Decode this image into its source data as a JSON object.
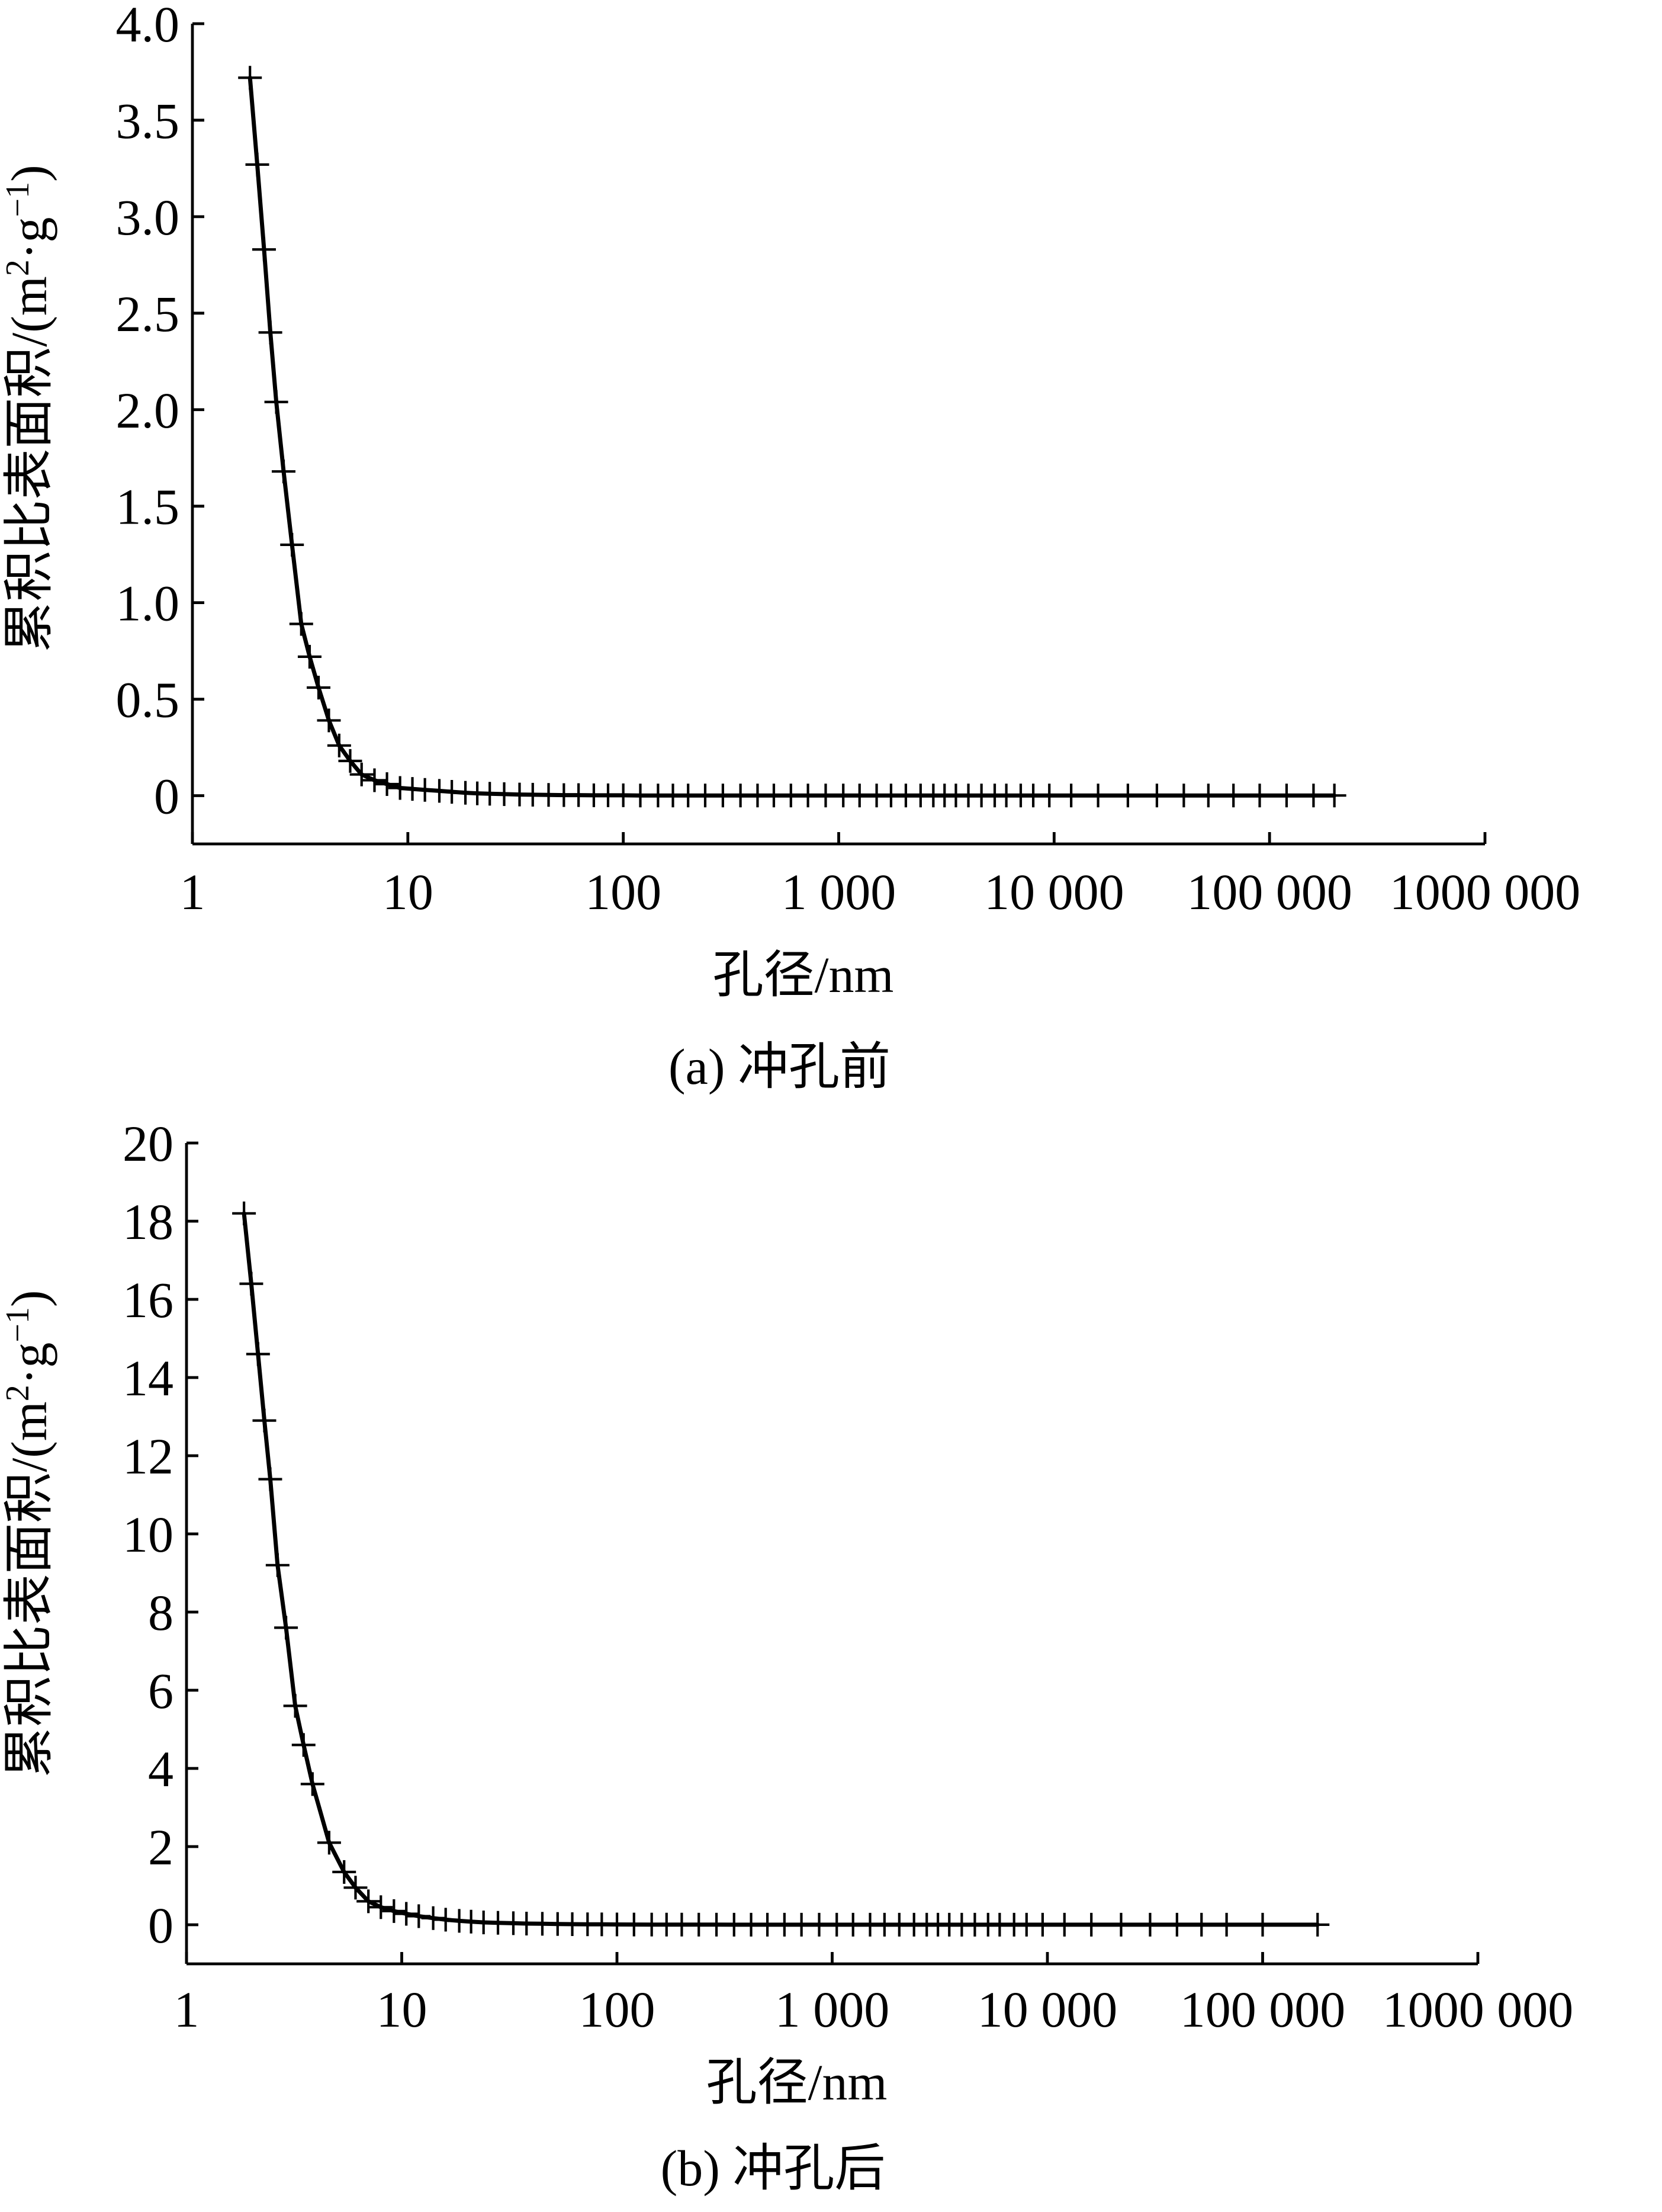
{
  "chart_data": [
    {
      "type": "line",
      "caption": "(a) 冲孔前",
      "xlabel": "孔径/nm",
      "ylabel": "累积比表面积/(m²·g⁻¹)",
      "ylabel_parts": {
        "main": "累积比表面积/(m",
        "sup1": "2",
        "mid": "·g",
        "sup2": "−1",
        "end": ")"
      },
      "x_scale": "log",
      "xlim": [
        1,
        1000000
      ],
      "ylim": [
        -0.25,
        4.0
      ],
      "x_ticks": [
        1,
        10,
        100,
        1000,
        10000,
        100000,
        1000000
      ],
      "x_tick_labels": [
        "1",
        "10",
        "100",
        "1 000",
        "10 000",
        "100 000",
        "1000 000"
      ],
      "y_ticks": [
        0,
        0.5,
        1.0,
        1.5,
        2.0,
        2.5,
        3.0,
        3.5,
        4.0
      ],
      "y_tick_labels": [
        "0",
        "0.5",
        "1.0",
        "1.5",
        "2.0",
        "2.5",
        "3.0",
        "3.5",
        "4.0"
      ],
      "grid": false,
      "series": [
        {
          "marker": "+",
          "x": [
            1.85,
            2.0,
            2.15,
            2.3,
            2.45,
            2.65,
            2.9,
            3.2,
            3.5,
            3.85,
            4.3,
            4.8,
            5.4,
            6.1,
            7.0,
            8.0,
            9.2,
            10.5,
            12,
            14,
            16,
            18.5,
            21,
            24,
            28,
            33,
            38,
            45,
            53,
            62,
            73,
            85,
            100,
            120,
            145,
            170,
            200,
            240,
            290,
            350,
            420,
            500,
            600,
            720,
            870,
            1050,
            1250,
            1500,
            1750,
            2050,
            2400,
            2750,
            3100,
            3500,
            4000,
            4600,
            5300,
            6000,
            7000,
            8000,
            9500,
            12000,
            16000,
            22000,
            30000,
            40000,
            52000,
            68000,
            90000,
            120000,
            160000,
            200000
          ],
          "y": [
            3.72,
            3.27,
            2.83,
            2.4,
            2.04,
            1.68,
            1.3,
            0.89,
            0.72,
            0.56,
            0.39,
            0.26,
            0.18,
            0.11,
            0.08,
            0.06,
            0.04,
            0.035,
            0.03,
            0.025,
            0.02,
            0.015,
            0.012,
            0.01,
            0.008,
            0.006,
            0.005,
            0.004,
            0.003,
            0.003,
            0.002,
            0.002,
            0.002,
            0.001,
            0.001,
            0.001,
            0.001,
            0.001,
            0.001,
            0.001,
            0.001,
            0.001,
            0.001,
            0.001,
            0.001,
            0.001,
            0.001,
            0.001,
            0.001,
            0.001,
            0.001,
            0.001,
            0.001,
            0.001,
            0.001,
            0.001,
            0.001,
            0.001,
            0.001,
            0.001,
            0.001,
            0.001,
            0.001,
            0.001,
            0.001,
            0.001,
            0.001,
            0.001,
            0.001,
            0.001,
            0.001,
            0.001
          ]
        }
      ]
    },
    {
      "type": "line",
      "caption": "(b) 冲孔后",
      "xlabel": "孔径/nm",
      "ylabel": "累积比表面积/(m²·g⁻¹)",
      "ylabel_parts": {
        "main": "累积比表面积/(m",
        "sup1": "2",
        "mid": "·g",
        "sup2": "−1",
        "end": ")"
      },
      "x_scale": "log",
      "xlim": [
        1,
        1000000
      ],
      "ylim": [
        -1.0,
        20
      ],
      "x_ticks": [
        1,
        10,
        100,
        1000,
        10000,
        100000,
        1000000
      ],
      "x_tick_labels": [
        "1",
        "10",
        "100",
        "1 000",
        "10 000",
        "100 000",
        "1000 000"
      ],
      "y_ticks": [
        0,
        2,
        4,
        6,
        8,
        10,
        12,
        14,
        16,
        18,
        20
      ],
      "y_tick_labels": [
        "0",
        "2",
        "4",
        "6",
        "8",
        "10",
        "12",
        "14",
        "16",
        "18",
        "20"
      ],
      "grid": false,
      "series": [
        {
          "marker": "+",
          "x": [
            1.85,
            2.0,
            2.15,
            2.3,
            2.45,
            2.65,
            2.9,
            3.2,
            3.5,
            3.85,
            4.6,
            5.4,
            6.1,
            7.0,
            8.0,
            9.2,
            10.5,
            12,
            14,
            16,
            18.5,
            21,
            24,
            28,
            33,
            38,
            45,
            53,
            62,
            73,
            85,
            100,
            120,
            145,
            170,
            200,
            240,
            290,
            350,
            420,
            500,
            600,
            720,
            870,
            1050,
            1250,
            1500,
            1750,
            2050,
            2400,
            2750,
            3100,
            3500,
            4000,
            4600,
            5300,
            6000,
            7000,
            8000,
            9500,
            12000,
            16000,
            22000,
            30000,
            40000,
            52000,
            68000,
            100000,
            180000
          ],
          "y": [
            18.2,
            16.4,
            14.6,
            12.9,
            11.4,
            9.2,
            7.6,
            5.6,
            4.6,
            3.6,
            2.1,
            1.35,
            0.95,
            0.6,
            0.45,
            0.35,
            0.28,
            0.22,
            0.17,
            0.13,
            0.1,
            0.08,
            0.06,
            0.05,
            0.04,
            0.03,
            0.025,
            0.02,
            0.015,
            0.012,
            0.01,
            0.008,
            0.006,
            0.005,
            0.004,
            0.004,
            0.003,
            0.003,
            0.002,
            0.002,
            0.002,
            0.002,
            0.002,
            0.002,
            0.002,
            0.002,
            0.002,
            0.002,
            0.002,
            0.002,
            0.002,
            0.002,
            0.002,
            0.002,
            0.002,
            0.002,
            0.002,
            0.002,
            0.002,
            0.002,
            0.002,
            0.002,
            0.002,
            0.002,
            0.002,
            0.002,
            0.002,
            0.002,
            0.002
          ]
        }
      ]
    }
  ]
}
